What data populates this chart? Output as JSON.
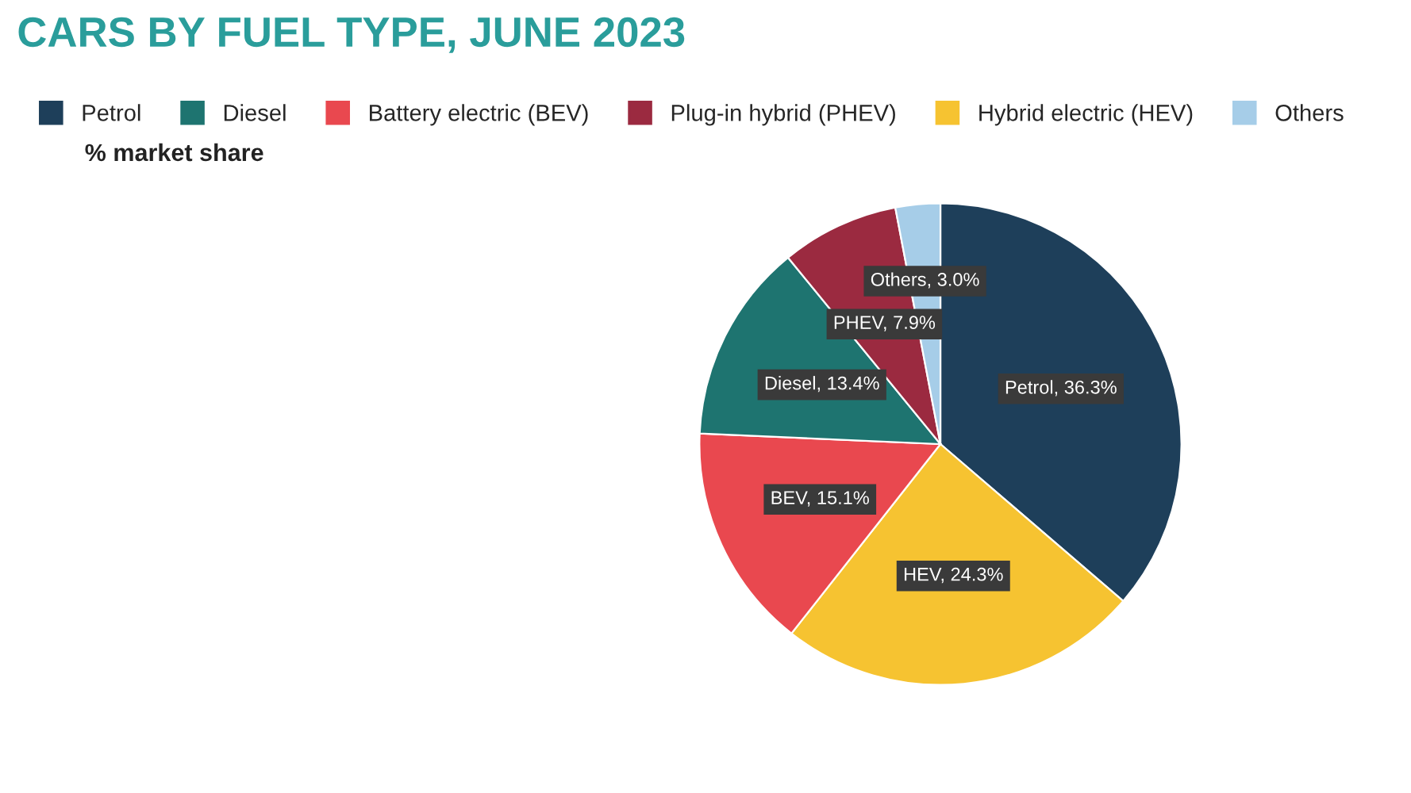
{
  "chart_data": {
    "type": "pie",
    "title": "CARS BY FUEL TYPE, JUNE 2023",
    "subtitle": "% market share",
    "categories": [
      "Petrol",
      "Diesel",
      "Battery electric (BEV)",
      "Plug-in hybrid (PHEV)",
      "Hybrid electric (HEV)",
      "Others"
    ],
    "values": [
      36.3,
      13.4,
      15.1,
      7.9,
      24.3,
      3.0
    ],
    "value_labels": [
      "Petrol, 36.3%",
      "Diesel, 13.4%",
      "BEV, 15.1%",
      "PHEV, 7.9%",
      "HEV, 24.3%",
      "Others, 3.0%"
    ],
    "colors": [
      "#1e3f5a",
      "#1e7470",
      "#e9484f",
      "#9b2a40",
      "#f6c331",
      "#a6cde8"
    ],
    "legend": "top left"
  }
}
